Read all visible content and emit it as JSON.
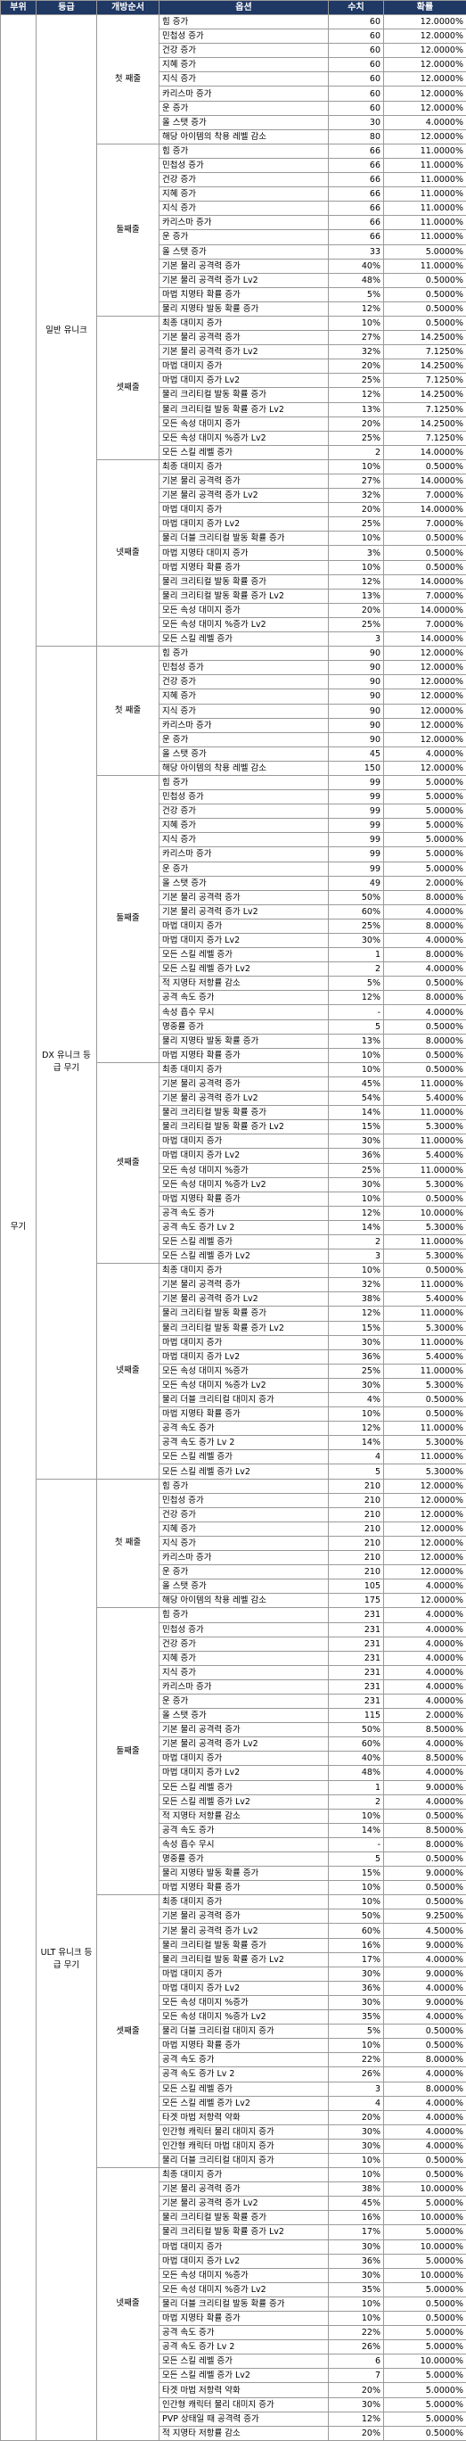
{
  "headers": {
    "part": "부위",
    "grade": "등급",
    "order": "개방순서",
    "option": "옵션",
    "value": "수치",
    "prob": "확률"
  },
  "weapon_label": "무기",
  "grades": [
    {
      "label": "일반 유니크",
      "sections": [
        {
          "label": "첫 째줄",
          "rows": [
            [
              "힘 증가",
              "60",
              "12.0000%"
            ],
            [
              "민첩성 증가",
              "60",
              "12.0000%"
            ],
            [
              "건강 증가",
              "60",
              "12.0000%"
            ],
            [
              "지혜 증가",
              "60",
              "12.0000%"
            ],
            [
              "지식 증가",
              "60",
              "12.0000%"
            ],
            [
              "카리스마 증가",
              "60",
              "12.0000%"
            ],
            [
              "운 증가",
              "60",
              "12.0000%"
            ],
            [
              "올 스탯 증가",
              "30",
              "4.0000%"
            ],
            [
              "해당 아이템의 착용 레벨 감소",
              "80",
              "12.0000%"
            ]
          ]
        },
        {
          "label": "둘째줄",
          "rows": [
            [
              "힘 증가",
              "66",
              "11.0000%"
            ],
            [
              "민첩성 증가",
              "66",
              "11.0000%"
            ],
            [
              "건강 증가",
              "66",
              "11.0000%"
            ],
            [
              "지혜 증가",
              "66",
              "11.0000%"
            ],
            [
              "지식 증가",
              "66",
              "11.0000%"
            ],
            [
              "카리스마 증가",
              "66",
              "11.0000%"
            ],
            [
              "운 증가",
              "66",
              "11.0000%"
            ],
            [
              "올 스탯 증가",
              "33",
              "5.0000%"
            ],
            [
              "기본 물리 공격력 증가",
              "40%",
              "11.0000%"
            ],
            [
              "기본 물리 공격력 증가 Lv2",
              "48%",
              "0.5000%"
            ],
            [
              "마법 치명타 확률 증가",
              "5%",
              "0.5000%"
            ],
            [
              "물리 지명타 발동 확률 증가",
              "12%",
              "0.5000%"
            ]
          ]
        },
        {
          "label": "셋째줄",
          "rows": [
            [
              "최종 대미지 증가",
              "10%",
              "0.5000%"
            ],
            [
              "기본 물리 공격력 증가",
              "27%",
              "14.2500%"
            ],
            [
              "기본 물리 공격력 증가 Lv2",
              "32%",
              "7.1250%"
            ],
            [
              "마법 대미지 증가",
              "20%",
              "14.2500%"
            ],
            [
              "마법 대미지 증가 Lv2",
              "25%",
              "7.1250%"
            ],
            [
              "물리 크리티컬 발동 확률 증가",
              "12%",
              "14.2500%"
            ],
            [
              "물리 크리티컬 발동 확률 증가 Lv2",
              "13%",
              "7.1250%"
            ],
            [
              "모든 속성 대미지 증가",
              "20%",
              "14.2500%"
            ],
            [
              "모든 속성 대미지 %증가 Lv2",
              "25%",
              "7.1250%"
            ],
            [
              "모든 스킬 레벨 증가",
              "2",
              "14.0000%"
            ]
          ]
        },
        {
          "label": "넷째줄",
          "rows": [
            [
              "최종 대미지 증가",
              "10%",
              "0.5000%"
            ],
            [
              "기본 물리 공격력 증가",
              "27%",
              "14.0000%"
            ],
            [
              "기본 물리 공격력 증가 Lv2",
              "32%",
              "7.0000%"
            ],
            [
              "마법 대미지 증가",
              "20%",
              "14.0000%"
            ],
            [
              "마법 대미지 증가 Lv2",
              "25%",
              "7.0000%"
            ],
            [
              "물리 더블 크리티컬 발동 확률 증가",
              "10%",
              "0.5000%"
            ],
            [
              "마법 지명타 대미지 증가",
              "3%",
              "0.5000%"
            ],
            [
              "마법 지명타 확률 증가",
              "10%",
              "0.5000%"
            ],
            [
              "물리 크리티컬 발동 확률 증가",
              "12%",
              "14.0000%"
            ],
            [
              "물리 크리티컬 발동 확률 증가 Lv2",
              "13%",
              "7.0000%"
            ],
            [
              "모든 속성 대미지 증가",
              "20%",
              "14.0000%"
            ],
            [
              "모든 속성 대미지 %증가 Lv2",
              "25%",
              "7.0000%"
            ],
            [
              "모든 스킬 레벨 증가",
              "3",
              "14.0000%"
            ]
          ]
        }
      ]
    },
    {
      "label": "DX 유니크\n등급 무기",
      "sections": [
        {
          "label": "첫 째줄",
          "rows": [
            [
              "힘 증가",
              "90",
              "12.0000%"
            ],
            [
              "민첩성 증가",
              "90",
              "12.0000%"
            ],
            [
              "건강 증가",
              "90",
              "12.0000%"
            ],
            [
              "지혜 증가",
              "90",
              "12.0000%"
            ],
            [
              "지식 증가",
              "90",
              "12.0000%"
            ],
            [
              "카리스마 증가",
              "90",
              "12.0000%"
            ],
            [
              "운 증가",
              "90",
              "12.0000%"
            ],
            [
              "올 스탯 증가",
              "45",
              "4.0000%"
            ],
            [
              "해당 아이템의 착용 레벨 감소",
              "150",
              "12.0000%"
            ]
          ]
        },
        {
          "label": "둘째줄",
          "rows": [
            [
              "힘 증가",
              "99",
              "5.0000%"
            ],
            [
              "민첩성 증가",
              "99",
              "5.0000%"
            ],
            [
              "건강 증가",
              "99",
              "5.0000%"
            ],
            [
              "지혜 증가",
              "99",
              "5.0000%"
            ],
            [
              "지식 증가",
              "99",
              "5.0000%"
            ],
            [
              "카리스마 증가",
              "99",
              "5.0000%"
            ],
            [
              "운 증가",
              "99",
              "5.0000%"
            ],
            [
              "올 스탯 증가",
              "49",
              "2.0000%"
            ],
            [
              "기본 물리 공격력 증가",
              "50%",
              "8.0000%"
            ],
            [
              "기본 물리 공격력 증가 Lv2",
              "60%",
              "4.0000%"
            ],
            [
              "마법 대미지 증가",
              "25%",
              "8.0000%"
            ],
            [
              "마법 대미지 증가 Lv2",
              "30%",
              "4.0000%"
            ],
            [
              "모든 스킬 레벨 증가",
              "1",
              "8.0000%"
            ],
            [
              "모든 스킬 레벨 증가 Lv2",
              "2",
              "4.0000%"
            ],
            [
              "적 지명타 저항률 감소",
              "5%",
              "0.5000%"
            ],
            [
              "공격 속도 증가",
              "12%",
              "8.0000%"
            ],
            [
              "속성 흡수 무시",
              "-",
              "4.0000%"
            ],
            [
              "명중률 증가",
              "5",
              "0.5000%"
            ],
            [
              "물리 지명타 발동 확률 증가",
              "13%",
              "8.0000%"
            ],
            [
              "마법 지명타 확률 증가",
              "10%",
              "0.5000%"
            ]
          ]
        },
        {
          "label": "셋째줄",
          "rows": [
            [
              "최종 대미지 증가",
              "10%",
              "0.5000%"
            ],
            [
              "기본 물리 공격력 증가",
              "45%",
              "11.0000%"
            ],
            [
              "기본 물리 공격력 증가 Lv2",
              "54%",
              "5.4000%"
            ],
            [
              "물리 크리티컬 발동 확률 증가",
              "14%",
              "11.0000%"
            ],
            [
              "물리 크리티컬 발동 확률 증가 Lv2",
              "15%",
              "5.3000%"
            ],
            [
              "마법 대미지 증가",
              "30%",
              "11.0000%"
            ],
            [
              "마법 대미지 증가 Lv2",
              "36%",
              "5.4000%"
            ],
            [
              "모든 속성 대미지 %증가",
              "25%",
              "11.0000%"
            ],
            [
              "모든 속성 대미지 %증가 Lv2",
              "30%",
              "5.3000%"
            ],
            [
              "마법 지명타 확률 증가",
              "10%",
              "0.5000%"
            ],
            [
              "공격 속도 증가",
              "12%",
              "10.0000%"
            ],
            [
              "공격 속도 증가 Lv 2",
              "14%",
              "5.3000%"
            ],
            [
              "모든 스킬 레벨 증가",
              "2",
              "11.0000%"
            ],
            [
              "모든 스킬 레벨 증가 Lv2",
              "3",
              "5.3000%"
            ]
          ]
        },
        {
          "label": "넷째줄",
          "rows": [
            [
              "최종 대미지 증가",
              "10%",
              "0.5000%"
            ],
            [
              "기본 물리 공격력 증가",
              "32%",
              "11.0000%"
            ],
            [
              "기본 물리 공격력 증가 Lv2",
              "38%",
              "5.4000%"
            ],
            [
              "물리 크리티컬 발동 확률 증가",
              "12%",
              "11.0000%"
            ],
            [
              "물리 크리티컬 발동 확률 증가 Lv2",
              "15%",
              "5.3000%"
            ],
            [
              "마법 대미지 증가",
              "30%",
              "11.0000%"
            ],
            [
              "마법 대미지 증가 Lv2",
              "36%",
              "5.4000%"
            ],
            [
              "모든 속성 대미지 %증가",
              "25%",
              "11.0000%"
            ],
            [
              "모든 속성 대미지 %증가 Lv2",
              "30%",
              "5.3000%"
            ],
            [
              "물리 더블 크리티컬 대미지 증가",
              "4%",
              "0.5000%"
            ],
            [
              "마법 지명타 확률 증가",
              "10%",
              "0.5000%"
            ],
            [
              "공격 속도 증가",
              "12%",
              "11.0000%"
            ],
            [
              "공격 속도 증가 Lv 2",
              "14%",
              "5.3000%"
            ],
            [
              "모든 스킬 레벨 증가",
              "4",
              "11.0000%"
            ],
            [
              "모든 스킬 레벨 증가 Lv2",
              "5",
              "5.3000%"
            ]
          ]
        }
      ]
    },
    {
      "label": "ULT 유니크\n등급 무기",
      "sections": [
        {
          "label": "첫 째줄",
          "rows": [
            [
              "힘 증가",
              "210",
              "12.0000%"
            ],
            [
              "민첩성 증가",
              "210",
              "12.0000%"
            ],
            [
              "건강 증가",
              "210",
              "12.0000%"
            ],
            [
              "지혜 증가",
              "210",
              "12.0000%"
            ],
            [
              "지식 증가",
              "210",
              "12.0000%"
            ],
            [
              "카리스마 증가",
              "210",
              "12.0000%"
            ],
            [
              "운 증가",
              "210",
              "12.0000%"
            ],
            [
              "올 스탯 증가",
              "105",
              "4.0000%"
            ],
            [
              "해당 아이템의 착용 레벨 감소",
              "175",
              "12.0000%"
            ]
          ]
        },
        {
          "label": "둘째줄",
          "rows": [
            [
              "힘 증가",
              "231",
              "4.0000%"
            ],
            [
              "민첩성 증가",
              "231",
              "4.0000%"
            ],
            [
              "건강 증가",
              "231",
              "4.0000%"
            ],
            [
              "지혜 증가",
              "231",
              "4.0000%"
            ],
            [
              "지식 증가",
              "231",
              "4.0000%"
            ],
            [
              "카리스마 증가",
              "231",
              "4.0000%"
            ],
            [
              "운 증가",
              "231",
              "4.0000%"
            ],
            [
              "올 스탯 증가",
              "115",
              "2.0000%"
            ],
            [
              "기본 물리 공격력 증가",
              "50%",
              "8.5000%"
            ],
            [
              "기본 물리 공격력 증가 Lv2",
              "60%",
              "4.0000%"
            ],
            [
              "마법 대미지 증가",
              "40%",
              "8.5000%"
            ],
            [
              "마법 대미지 증가 Lv2",
              "48%",
              "4.0000%"
            ],
            [
              "모든 스킬 레벨 증가",
              "1",
              "9.0000%"
            ],
            [
              "모든 스킬 레벨 증가 Lv2",
              "2",
              "4.0000%"
            ],
            [
              "적 지명타 저항률 감소",
              "10%",
              "0.5000%"
            ],
            [
              "공격 속도 증가",
              "14%",
              "8.5000%"
            ],
            [
              "속성 흡수 무시",
              "-",
              "8.0000%"
            ],
            [
              "명중률 증가",
              "5",
              "0.5000%"
            ],
            [
              "물리 지명타 발동 확률 증가",
              "15%",
              "9.0000%"
            ],
            [
              "마법 지명타 확률 증가",
              "10%",
              "0.5000%"
            ]
          ]
        },
        {
          "label": "셋째줄",
          "rows": [
            [
              "최종 대미지 증가",
              "10%",
              "0.5000%"
            ],
            [
              "기본 물리 공격력 증가",
              "50%",
              "9.2500%"
            ],
            [
              "기본 물리 공격력 증가 Lv2",
              "60%",
              "4.5000%"
            ],
            [
              "물리 크리티컬 발동 확률 증가",
              "16%",
              "9.0000%"
            ],
            [
              "물리 크리티컬 발동 확률 증가 Lv2",
              "17%",
              "4.0000%"
            ],
            [
              "마법 대미지 증가",
              "30%",
              "9.0000%"
            ],
            [
              "마법 대미지 증가 Lv2",
              "36%",
              "4.0000%"
            ],
            [
              "모든 속성 대미지 %증가",
              "30%",
              "9.0000%"
            ],
            [
              "모든 속성 대미지 %증가 Lv2",
              "35%",
              "4.0000%"
            ],
            [
              "물리 더블 크리티컬 대미지 증가",
              "5%",
              "0.5000%"
            ],
            [
              "마법 지명타 확률 증가",
              "10%",
              "0.5000%"
            ],
            [
              "공격 속도 증가",
              "22%",
              "8.0000%"
            ],
            [
              "공격 속도 증가 Lv 2",
              "26%",
              "4.0000%"
            ],
            [
              "모든 스킬 레벨 증가",
              "3",
              "8.0000%"
            ],
            [
              "모든 스킬 레벨 증가 Lv2",
              "4",
              "4.0000%"
            ],
            [
              "타겟 마법 저항력 약화",
              "20%",
              "4.0000%"
            ],
            [
              "인간형 캐릭터 물리 대미지 증가",
              "30%",
              "4.0000%"
            ],
            [
              "인간형 캐릭터 마법 대미지 증가",
              "30%",
              "4.0000%"
            ],
            [
              "물리 더블 크리티컬 대미지 증가",
              "10%",
              "0.5000%"
            ]
          ]
        },
        {
          "label": "넷째줄",
          "rows": [
            [
              "최종 대미지 증가",
              "10%",
              "0.5000%"
            ],
            [
              "기본 물리 공격력 증가",
              "38%",
              "10.0000%"
            ],
            [
              "기본 물리 공격력 증가 Lv2",
              "45%",
              "5.0000%"
            ],
            [
              "물리 크리티컬 발동 확률 증가",
              "16%",
              "10.0000%"
            ],
            [
              "물리 크리티컬 발동 확률 증가 Lv2",
              "17%",
              "5.0000%"
            ],
            [
              "마법 대미지 증가",
              "30%",
              "10.0000%"
            ],
            [
              "마법 대미지 증가 Lv2",
              "36%",
              "5.0000%"
            ],
            [
              "모든 속성 대미지 %증가",
              "30%",
              "10.0000%"
            ],
            [
              "모든 속성 대미지 %증가 Lv2",
              "35%",
              "5.0000%"
            ],
            [
              "물리 더블 크리티컬 발동 확률 증가",
              "10%",
              "0.5000%"
            ],
            [
              "마법 지명타 확률 증가",
              "10%",
              "0.5000%"
            ],
            [
              "공격 속도 증가",
              "22%",
              "5.0000%"
            ],
            [
              "공격 속도 증가 Lv 2",
              "26%",
              "5.0000%"
            ],
            [
              "모든 스킬 레벨 증가",
              "6",
              "10.0000%"
            ],
            [
              "모든 스킬 레벨 증가 Lv2",
              "7",
              "5.0000%"
            ],
            [
              "타겟 마법 저항력 약화",
              "20%",
              "5.0000%"
            ],
            [
              "인간형 캐릭터 물리 대미지 증가",
              "30%",
              "5.0000%"
            ],
            [
              "PVP 상태일 때 공격력 증가",
              "12%",
              "5.0000%"
            ],
            [
              "적 지명타 저항률 감소",
              "20%",
              "0.5000%"
            ]
          ]
        }
      ]
    }
  ]
}
